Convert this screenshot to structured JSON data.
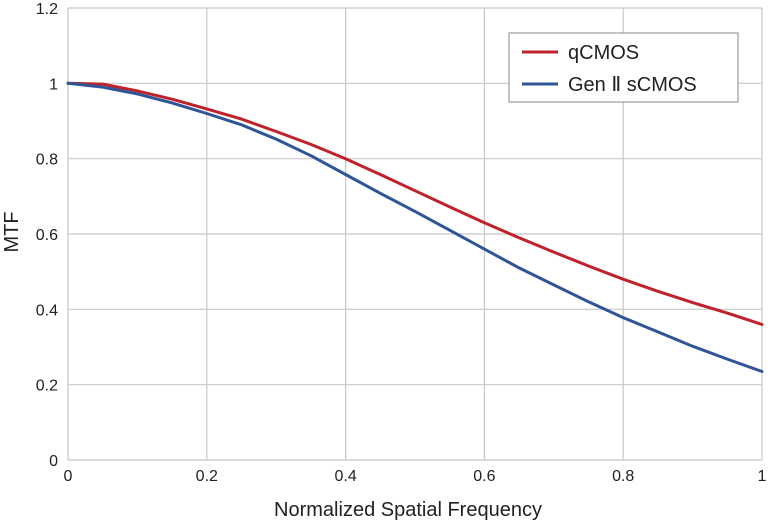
{
  "chart_data": {
    "type": "line",
    "title": "",
    "xlabel": "Normalized Spatial Frequency",
    "ylabel": "MTF",
    "xlim": [
      0,
      1
    ],
    "ylim": [
      0,
      1.2
    ],
    "xticks": [
      0,
      0.2,
      0.4,
      0.6,
      0.8,
      1
    ],
    "xtick_labels": [
      "0",
      "0.2",
      "0.4",
      "0.6",
      "0.8",
      "1"
    ],
    "yticks": [
      0,
      0.2,
      0.4,
      0.6,
      0.8,
      1,
      1.2
    ],
    "ytick_labels": [
      "0",
      "0.2",
      "0.4",
      "0.6",
      "0.8",
      "1",
      "1.2"
    ],
    "grid": true,
    "legend_position": "top-right",
    "series": [
      {
        "name": "qCMOS",
        "color": "#c0222b",
        "x": [
          0,
          0.05,
          0.1,
          0.15,
          0.2,
          0.25,
          0.3,
          0.35,
          0.4,
          0.45,
          0.5,
          0.55,
          0.6,
          0.65,
          0.7,
          0.75,
          0.8,
          0.85,
          0.9,
          0.95,
          1.0
        ],
        "y": [
          1.0,
          0.998,
          0.98,
          0.958,
          0.932,
          0.905,
          0.872,
          0.838,
          0.8,
          0.758,
          0.715,
          0.672,
          0.63,
          0.59,
          0.552,
          0.515,
          0.48,
          0.448,
          0.418,
          0.39,
          0.36
        ]
      },
      {
        "name": "Gen Ⅱ sCMOS",
        "color": "#2e5597",
        "x": [
          0,
          0.05,
          0.1,
          0.15,
          0.2,
          0.25,
          0.3,
          0.35,
          0.4,
          0.45,
          0.5,
          0.55,
          0.6,
          0.65,
          0.7,
          0.75,
          0.8,
          0.85,
          0.9,
          0.95,
          1.0
        ],
        "y": [
          1.0,
          0.99,
          0.972,
          0.948,
          0.92,
          0.89,
          0.852,
          0.808,
          0.758,
          0.708,
          0.66,
          0.61,
          0.56,
          0.51,
          0.465,
          0.42,
          0.378,
          0.34,
          0.302,
          0.268,
          0.235
        ]
      }
    ]
  }
}
